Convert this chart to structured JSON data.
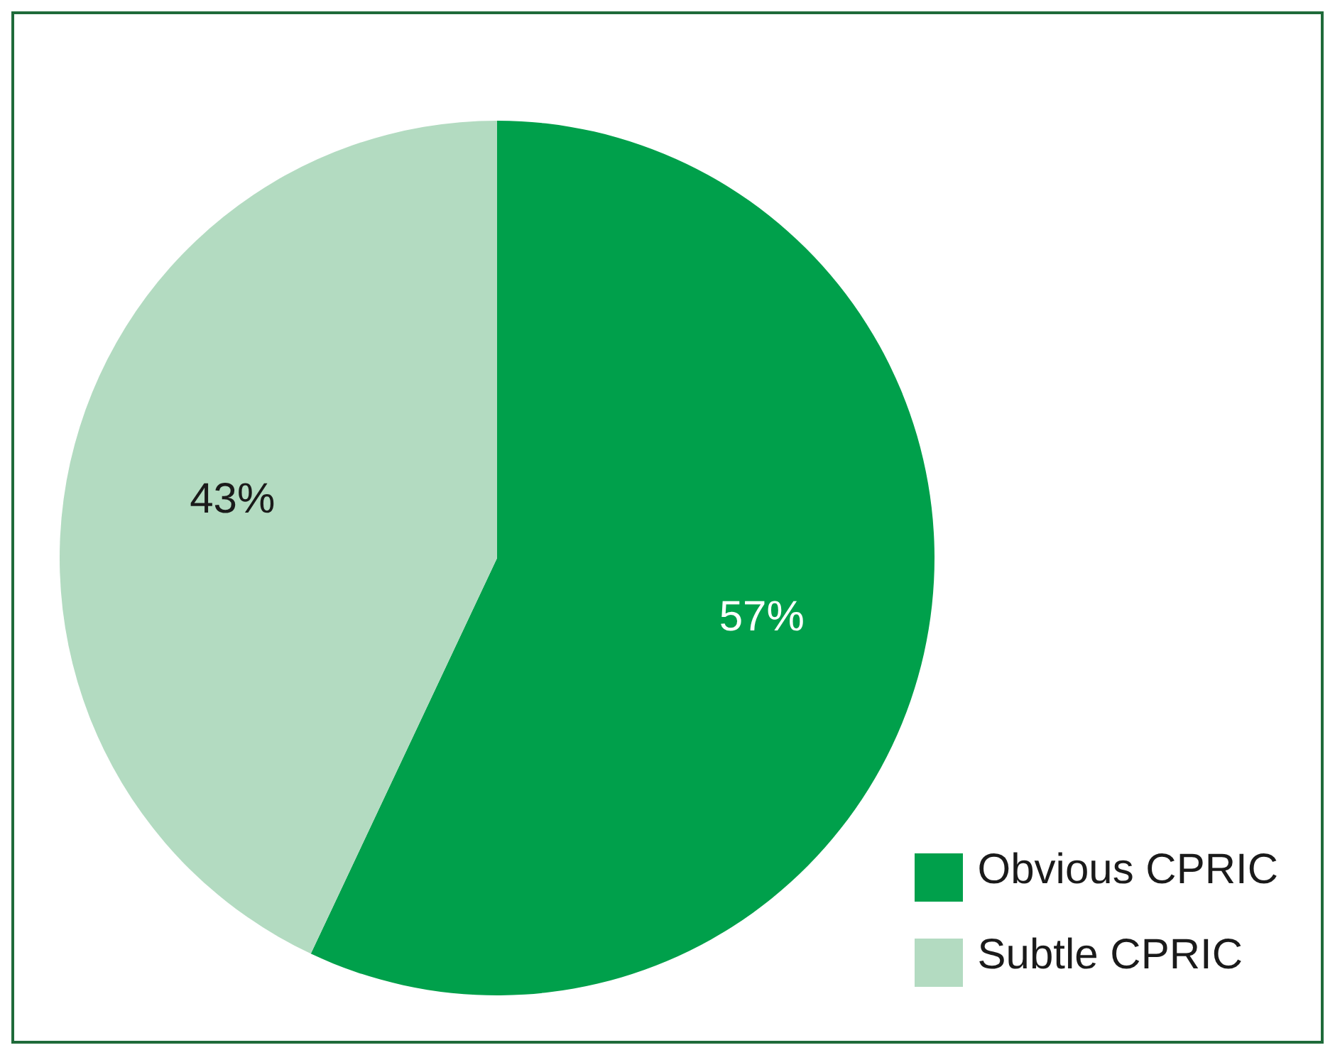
{
  "chart_data": {
    "type": "pie",
    "categories": [
      "Obvious CPRIC",
      "Subtle CPRIC"
    ],
    "values": [
      57,
      43
    ],
    "colors": [
      "#00a04b",
      "#b3dbc1"
    ],
    "value_labels": [
      "57%",
      "43%"
    ],
    "legend": "bottom right"
  }
}
